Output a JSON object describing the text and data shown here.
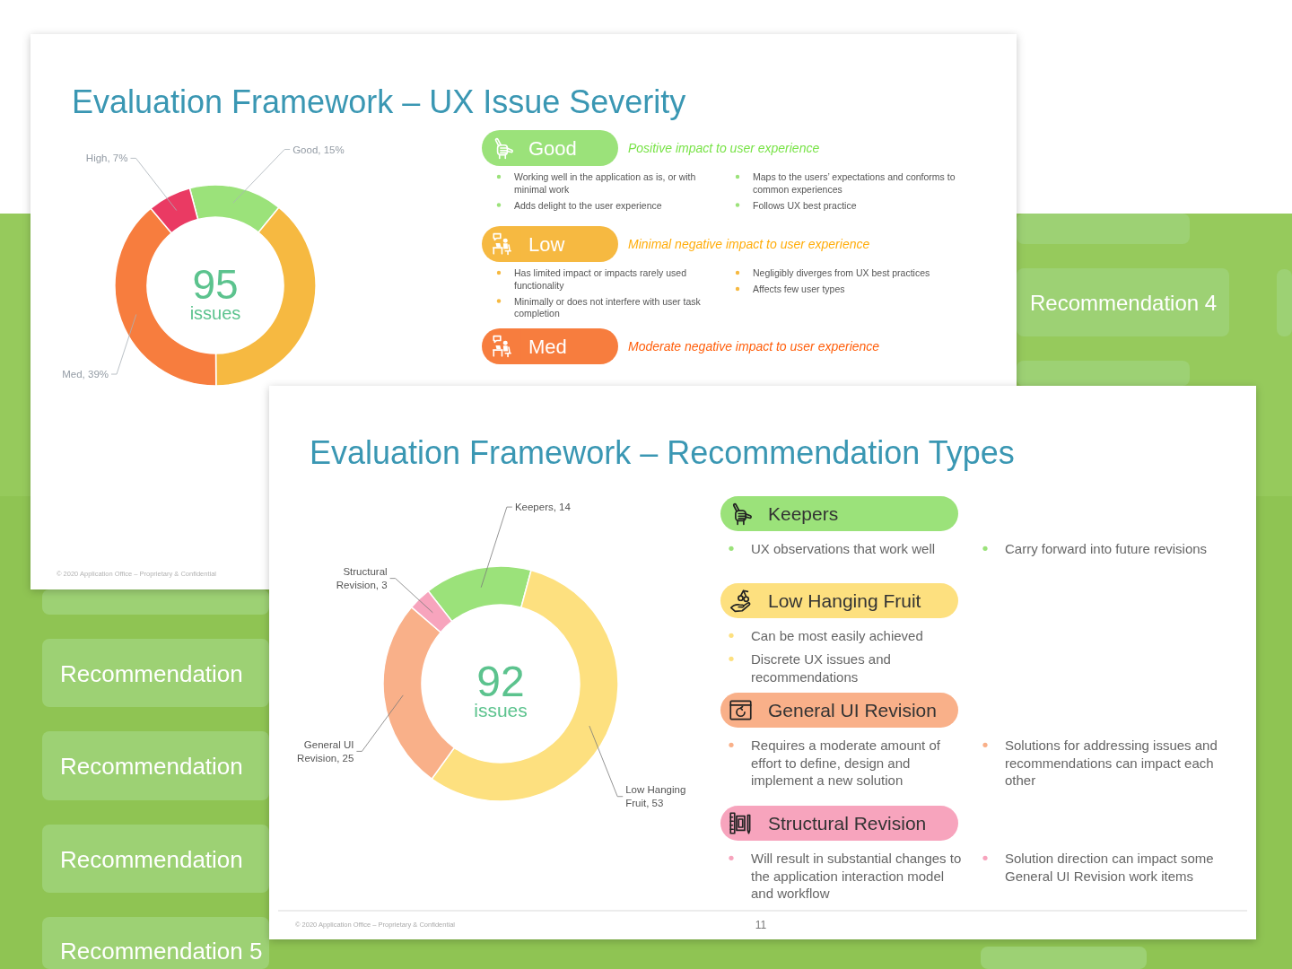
{
  "chart_data": [
    {
      "type": "donut",
      "title": "Evaluation Framework – UX Issue Severity",
      "categories": [
        "Good",
        "Low",
        "Med",
        null
      ],
      "values": [
        15,
        39,
        39,
        7
      ],
      "colors": [
        "#9be27a",
        "#f6b941",
        "#f77d3e",
        "#ea3a63"
      ],
      "value_labels": [
        "Good, 15%",
        null,
        "Med, 39%",
        "High, 7%"
      ],
      "legend": "right",
      "annotations": [
        "95",
        "issues",
        "Positive impact to user experience",
        "Working well in the application as is, or with minimal work",
        "Adds delight to the user experience",
        "Maps to the users’ expectations and conforms to common experiences",
        "Follows UX best practice",
        "Minimal negative impact to user experience",
        "Has limited impact or impacts rarely used functionality",
        "Minimally or does not interfere with user task completion",
        "Negligibly diverges from UX best practices",
        "Affects few user types",
        "Moderate negative impact to user experience",
        "© 2020 Application Office – Proprietary & Confidential"
      ]
    },
    {
      "type": "donut",
      "title": "Evaluation Framework – Recommendation Types",
      "categories": [
        "Keepers",
        "Low Hanging Fruit",
        "General UI Revision",
        "Structural Revision"
      ],
      "values": [
        14,
        53,
        25,
        3
      ],
      "colors": [
        "#9be27a",
        "#fde07f",
        "#f9b089",
        "#f7a4bd"
      ],
      "value_labels": [
        "Keepers, 14",
        "Low Hanging Fruit, 53",
        "General UI Revision, 25",
        "Structural Revision, 3"
      ],
      "legend": "right",
      "annotations": [
        "92",
        "issues",
        "UX observations that work well",
        "Carry forward into future revisions",
        "Can be most easily achieved",
        "Discrete UX issues and recommendations",
        "Requires a moderate amount of effort to define, design and implement a new solution",
        "Solutions for addressing issues and recommendations can impact each other",
        "Will result in substantial changes to the application interaction model and workflow",
        "Solution direction can impact some General UI Revision work items",
        "© 2020 Application Office – Proprietary & Confidential",
        "11"
      ]
    },
    {
      "type": "other",
      "annotations": [
        "Recommendation",
        "Recommendation",
        "Recommendation",
        "Recommendation 5",
        "Recommendation 4"
      ]
    }
  ]
}
